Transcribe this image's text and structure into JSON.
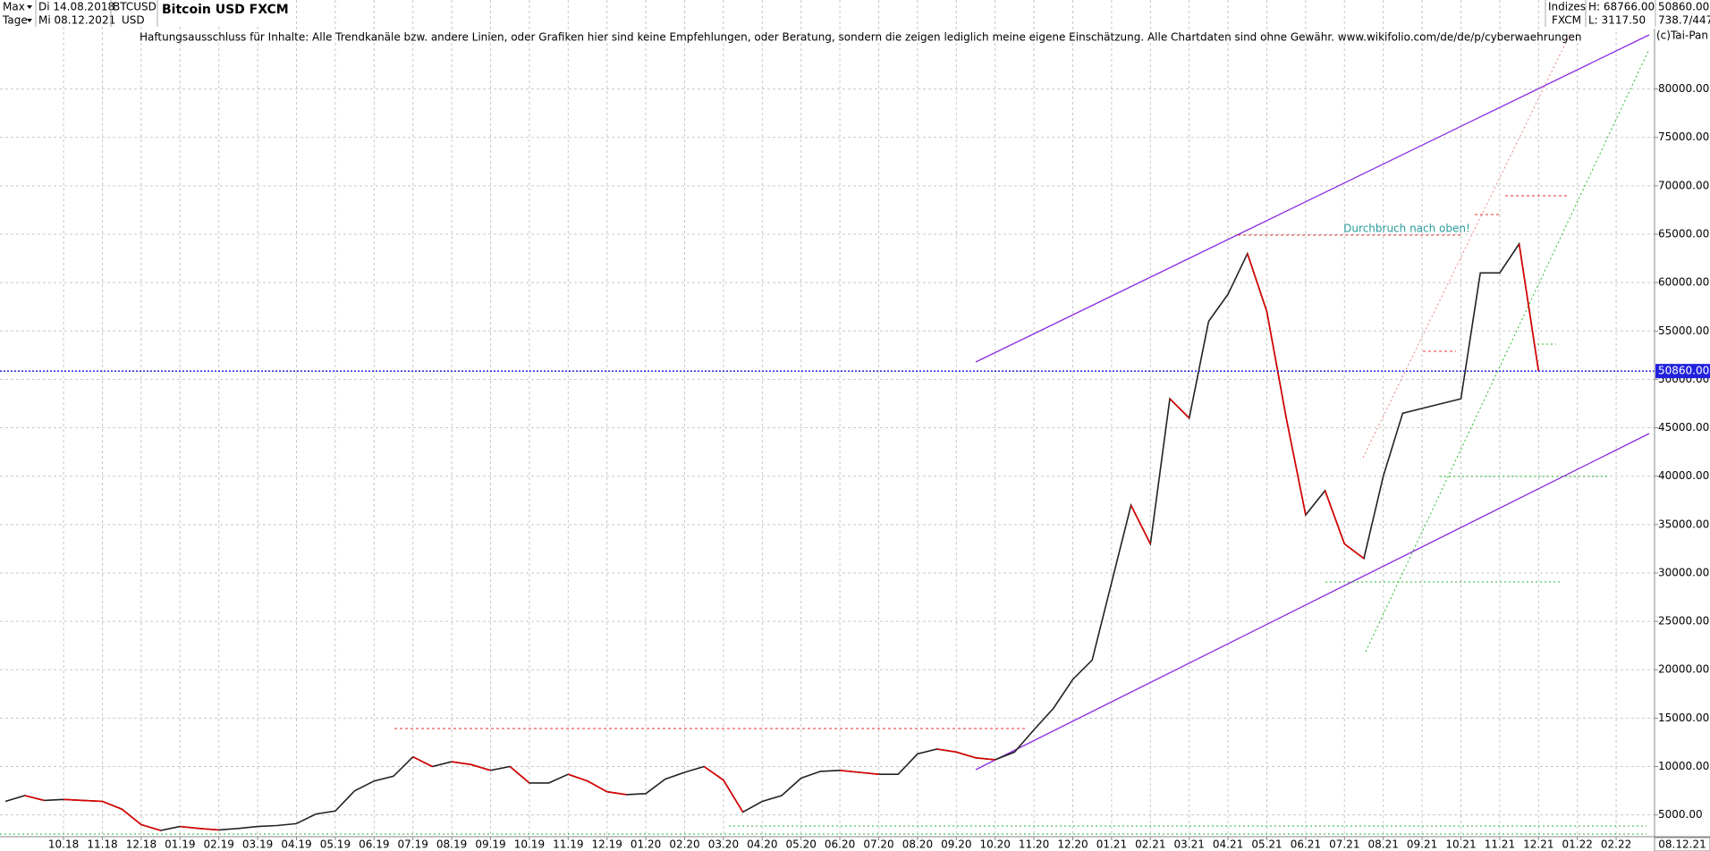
{
  "header": {
    "controls": [
      "Max",
      "Tage"
    ],
    "dates": [
      "Di 14.08.2018",
      "Mi 08.12.2021"
    ],
    "symbol": "BTCUSD",
    "currency": "USD",
    "exchange_labels": [
      "Indizes",
      "FXCM"
    ],
    "high": "H: 68766.00",
    "low": "L: 3117.50",
    "last": "50860.00",
    "info": "738.7/447",
    "copyright": "(c)Tai-Pan"
  },
  "disclaimer": "Haftungsausschluss für Inhalte: Alle Trendkanäle bzw. andere Linien, oder Grafiken hier sind keine Empfehlungen, oder Beratung, sondern die zeigen lediglich meine eigene Einschätzung. Alle Chartdaten sind ohne Gewähr.  www.wikifolio.com/de/de/p/cyberwaehrungen",
  "chart_data": {
    "type": "line",
    "title": "Bitcoin USD FXCM",
    "color": "#222222",
    "grid": true,
    "categories": [
      null,
      null,
      null,
      "10.18",
      null,
      "11.18",
      null,
      "12.18",
      null,
      "01.19",
      null,
      "02.19",
      null,
      "03.19",
      null,
      "04.19",
      null,
      "05.19",
      null,
      "06.19",
      null,
      "07.19",
      null,
      "08.19",
      null,
      "09.19",
      null,
      "10.19",
      null,
      "11.19",
      null,
      "12.19",
      null,
      "01.20",
      null,
      "02.20",
      null,
      "03.20",
      null,
      "04.20",
      null,
      "05.20",
      null,
      "06.20",
      null,
      "07.20",
      null,
      "08.20",
      null,
      "09.20",
      null,
      "10.20",
      null,
      "11.20",
      null,
      "12.20",
      null,
      "01.21",
      null,
      "02.21",
      null,
      "03.21",
      null,
      "04.21",
      null,
      "05.21",
      null,
      "06.21",
      null,
      "07.21",
      null,
      "08.21",
      null,
      "09.21",
      null,
      "10.21",
      null,
      "11.21",
      null,
      "12.21",
      null,
      "01.22",
      null,
      "02.22",
      null
    ],
    "values": [
      6400,
      7000,
      6500,
      6600,
      6500,
      6400,
      5600,
      4000,
      3400,
      3800,
      3600,
      3450,
      3600,
      3800,
      3900,
      4100,
      5100,
      5400,
      7500,
      8500,
      9000,
      11000,
      10000,
      10500,
      10200,
      9600,
      10000,
      8300,
      8300,
      9200,
      8500,
      7400,
      7100,
      7200,
      8700,
      9400,
      10000,
      8600,
      5300,
      6400,
      7000,
      8800,
      9500,
      9600,
      9400,
      9200,
      9200,
      11300,
      11800,
      11500,
      10900,
      10700,
      11500,
      13800,
      16000,
      19000,
      21000,
      29000,
      37000,
      33000,
      48000,
      46000,
      56000,
      58800,
      63000,
      57000,
      46000,
      36000,
      38500,
      33000,
      31500,
      40000,
      46500,
      47000,
      47500,
      48000,
      61000,
      61000,
      64000,
      50860,
      null,
      null,
      null,
      null,
      null
    ],
    "ylim": [
      2750,
      89200
    ],
    "yticks": [
      {
        "value": 5000,
        "label": "5000.00"
      },
      {
        "value": 10000,
        "label": "10000.00"
      },
      {
        "value": 15000,
        "label": "15000.00"
      },
      {
        "value": 20000,
        "label": "20000.00"
      },
      {
        "value": 25000,
        "label": "25000.00"
      },
      {
        "value": 30000,
        "label": "30000.00"
      },
      {
        "value": 35000,
        "label": "35000.00"
      },
      {
        "value": 40000,
        "label": "40000.00"
      },
      {
        "value": 45000,
        "label": "45000.00"
      },
      {
        "value": 50000,
        "label": "50000.00"
      },
      {
        "value": 55000,
        "label": "55000.00"
      },
      {
        "value": 60000,
        "label": "60000.00"
      },
      {
        "value": 65000,
        "label": "65000.00"
      },
      {
        "value": 70000,
        "label": "70000.00"
      },
      {
        "value": 75000,
        "label": "75000.00"
      },
      {
        "value": 80000,
        "label": "80000.00"
      }
    ],
    "last_price": {
      "value": 50860,
      "label": "50860.00"
    },
    "annotation": "Durchbruch nach oben!",
    "current_date_label": "08.12.21"
  }
}
